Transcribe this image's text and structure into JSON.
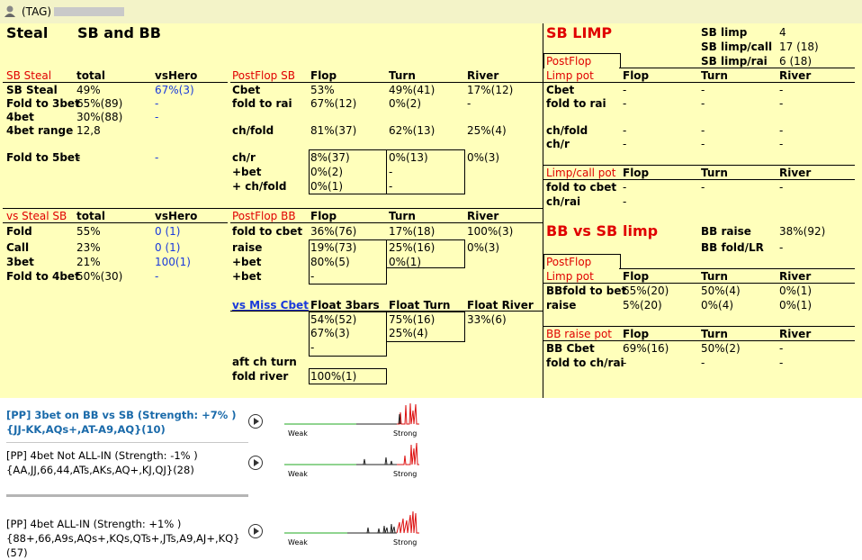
{
  "window": {
    "title": "(TAG)"
  },
  "steal": {
    "title": "Steal",
    "subtitle": "SB and BB",
    "sb_header": [
      "SB Steal",
      "total",
      "vsHero"
    ],
    "sb_rows": [
      [
        "SB Steal",
        "49%",
        "67%(3)"
      ],
      [
        "Fold to 3bet",
        "65%(89)",
        "-"
      ],
      [
        "4bet",
        "30%(88)",
        "-"
      ],
      [
        "4bet range",
        "12,8",
        ""
      ],
      [
        "Fold to 5bet",
        "-",
        "-"
      ]
    ],
    "vs_header": [
      "vs Steal SB",
      "total",
      "vsHero"
    ],
    "vs_rows": [
      [
        "Fold",
        "55%",
        "0 (1)"
      ],
      [
        "Call",
        "23%",
        "0 (1)"
      ],
      [
        "3bet",
        "21%",
        "100(1)"
      ],
      [
        "Fold to 4bet",
        "50%(30)",
        "-"
      ]
    ]
  },
  "postflop_sb": {
    "header": [
      "PostFlop SB",
      "Flop",
      "Turn",
      "River"
    ],
    "rows": [
      [
        "Cbet",
        "53%",
        "49%(41)",
        "17%(12)"
      ],
      [
        "fold to rai",
        "67%(12)",
        "0%(2)",
        "-"
      ],
      [
        "ch/fold",
        "81%(37)",
        "62%(13)",
        "25%(4)"
      ],
      [
        "ch/r",
        "8%(37)",
        "0%(13)",
        "0%(3)"
      ],
      [
        "+bet",
        "0%(2)",
        "-",
        ""
      ],
      [
        "+ ch/fold",
        "0%(1)",
        "-",
        ""
      ]
    ]
  },
  "postflop_bb": {
    "header": [
      "PostFlop BB",
      "Flop",
      "Turn",
      "River"
    ],
    "rows": [
      [
        "fold to cbet",
        "36%(76)",
        "17%(18)",
        "100%(3)"
      ],
      [
        "raise",
        "19%(73)",
        "25%(16)",
        "0%(3)"
      ],
      [
        "+bet",
        "80%(5)",
        "0%(1)",
        ""
      ],
      [
        "+bet",
        "-",
        "",
        ""
      ]
    ],
    "miss_header": [
      "vs Miss Cbet",
      "Float 3bars",
      "Float Turn",
      "Float River"
    ],
    "miss_rows": [
      [
        "",
        "54%(52)",
        "75%(16)",
        "33%(6)"
      ],
      [
        "",
        "67%(3)",
        "25%(4)",
        ""
      ],
      [
        "",
        "-",
        "",
        ""
      ]
    ],
    "aft_ch_turn": "aft ch turn",
    "fold_river": "fold river",
    "fold_river_val": "100%(1)"
  },
  "sb_limp": {
    "title": "SB LIMP",
    "stats": [
      [
        "SB limp",
        "4"
      ],
      [
        "SB limp/call",
        "17 (18)"
      ],
      [
        "SB limp/rai",
        "6 (18)"
      ]
    ],
    "tab": "PostFlop",
    "limp_header": [
      "Limp pot",
      "Flop",
      "Turn",
      "River"
    ],
    "limp_rows": [
      [
        "Cbet",
        "-",
        "-",
        "-"
      ],
      [
        "fold to rai",
        "-",
        "-",
        "-"
      ],
      [
        "ch/fold",
        "-",
        "-",
        "-"
      ],
      [
        "ch/r",
        "-",
        "-",
        "-"
      ]
    ],
    "call_header": [
      "Limp/call pot",
      "Flop",
      "Turn",
      "River"
    ],
    "call_rows": [
      [
        "fold to cbet",
        "-",
        "-",
        "-"
      ],
      [
        "ch/rai",
        "-",
        "",
        ""
      ]
    ]
  },
  "bb_vs_sb": {
    "title": "BB vs SB",
    "subtitle": "limp",
    "stats": [
      [
        "BB raise",
        "38%(92)"
      ],
      [
        "BB fold/LR",
        "-"
      ]
    ],
    "tab": "PostFlop",
    "limp_header": [
      "Limp pot",
      "Flop",
      "Turn",
      "River"
    ],
    "limp_rows": [
      [
        "BBfold to bet",
        "65%(20)",
        "50%(4)",
        "0%(1)"
      ],
      [
        "raise",
        "5%(20)",
        "0%(4)",
        "0%(1)"
      ]
    ],
    "raise_header": [
      "BB raise pot",
      "Flop",
      "Turn",
      "River"
    ],
    "raise_rows": [
      [
        "BB Cbet",
        "69%(16)",
        "50%(2)",
        "-"
      ],
      [
        "fold to ch/rai",
        "-",
        "-",
        "-"
      ]
    ]
  },
  "ranges": [
    {
      "text": "[PP] 3bet on BB vs SB (Strength: +7% ) {JJ-KK,AQs+,AT-A9,AQ}(10)",
      "weak": "Weak",
      "strong": "Strong"
    },
    {
      "text": "[PP] 4bet Not ALL-IN (Strength: -1% ) {AA,JJ,66,44,ATs,AKs,AQ+,KJ,QJ}(28)",
      "weak": "Weak",
      "strong": "Strong"
    },
    {
      "text": "[PP] 4bet ALL-IN (Strength: +1% ) {88+,66,A9s,AQs+,KQs,QTs+,JTs,A9,AJ+,KQ}(57)",
      "weak": "Weak",
      "strong": "Strong"
    }
  ],
  "colors": {
    "panel": "#ffffbb",
    "red": "#e00000",
    "blue": "#1a3adb",
    "link": "#1a6aaa"
  }
}
